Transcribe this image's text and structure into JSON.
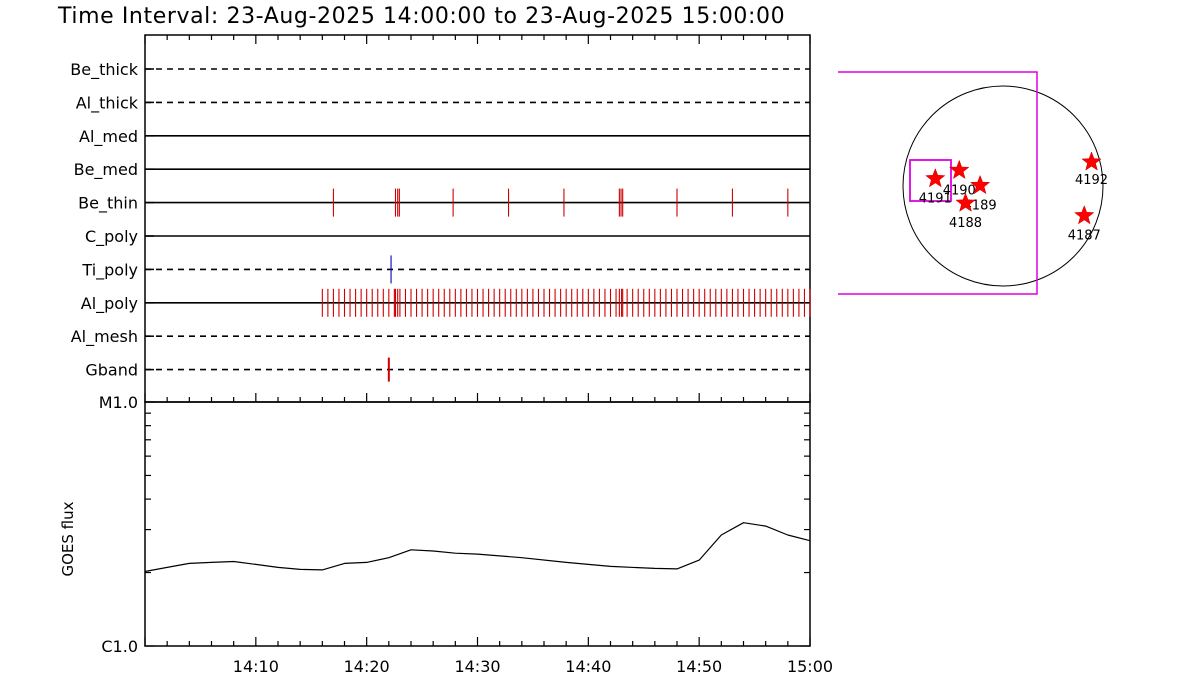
{
  "title": "Time Interval: 23-Aug-2025 14:00:00 to 23-Aug-2025 15:00:00",
  "chart_data": [
    {
      "type": "timeline",
      "x_unit": "minutes after 14:00",
      "xlim": [
        0,
        60
      ],
      "channels": [
        {
          "name": "Be_thick",
          "line": "dashed",
          "events": []
        },
        {
          "name": "Al_thick",
          "line": "dashed",
          "events": []
        },
        {
          "name": "Al_med",
          "line": "solid",
          "events": []
        },
        {
          "name": "Be_med",
          "line": "solid",
          "events": []
        },
        {
          "name": "Be_thin",
          "line": "solid",
          "color": "#d00000",
          "events": [
            17.0,
            22.6,
            22.8,
            22.95,
            27.8,
            32.8,
            37.8,
            42.8,
            42.95,
            43.1,
            48.0,
            53.0,
            58.0
          ]
        },
        {
          "name": "C_poly",
          "line": "solid",
          "events": []
        },
        {
          "name": "Ti_poly",
          "line": "dashed",
          "color": "#0000c0",
          "events": [
            22.2
          ]
        },
        {
          "name": "Al_poly",
          "line": "solid",
          "color": "#d00000",
          "events": [
            16.0,
            16.5,
            17.0,
            17.5,
            18.0,
            18.5,
            19.0,
            19.5,
            20.0,
            20.5,
            21.0,
            21.5,
            22.0,
            22.5,
            22.6,
            22.8,
            23.0,
            23.5,
            24.0,
            24.5,
            25.0,
            25.5,
            26.0,
            26.5,
            27.0,
            27.5,
            28.0,
            28.5,
            29.0,
            29.5,
            30.0,
            30.5,
            31.0,
            31.5,
            32.0,
            32.5,
            33.0,
            33.5,
            34.0,
            34.5,
            35.0,
            35.5,
            36.0,
            36.5,
            37.0,
            37.5,
            38.0,
            38.5,
            39.0,
            39.5,
            40.0,
            40.5,
            41.0,
            41.5,
            42.0,
            42.5,
            42.8,
            43.0,
            43.1,
            43.5,
            44.0,
            44.5,
            45.0,
            45.5,
            46.0,
            46.5,
            47.0,
            47.5,
            48.0,
            48.5,
            49.0,
            49.5,
            50.0,
            50.5,
            51.0,
            51.5,
            52.0,
            52.5,
            53.0,
            53.5,
            54.0,
            54.5,
            55.0,
            55.5,
            56.0,
            56.5,
            57.0,
            57.5,
            58.0,
            58.5,
            59.0,
            59.5,
            60.0
          ]
        },
        {
          "name": "Al_mesh",
          "line": "dashed",
          "events": []
        },
        {
          "name": "Gband",
          "line": "dashed",
          "color": "#d00000",
          "events": [
            22.0
          ]
        }
      ]
    },
    {
      "type": "line",
      "ylabel": "GOES flux",
      "ylim_labels": [
        "C1.0",
        "M1.0"
      ],
      "y_scale": "log",
      "xlim": [
        0,
        60
      ],
      "x_ticks": [
        {
          "t": 10,
          "label": "14:10"
        },
        {
          "t": 20,
          "label": "14:20"
        },
        {
          "t": 30,
          "label": "14:30"
        },
        {
          "t": 40,
          "label": "14:40"
        },
        {
          "t": 50,
          "label": "14:50"
        },
        {
          "t": 60,
          "label": "15:00"
        }
      ],
      "series": [
        {
          "values": [
            [
              0,
              2.02
            ],
            [
              2,
              2.1
            ],
            [
              4,
              2.18
            ],
            [
              6,
              2.2
            ],
            [
              8,
              2.22
            ],
            [
              10,
              2.16
            ],
            [
              12,
              2.1
            ],
            [
              14,
              2.06
            ],
            [
              16,
              2.05
            ],
            [
              18,
              2.18
            ],
            [
              20,
              2.2
            ],
            [
              22,
              2.3
            ],
            [
              24,
              2.48
            ],
            [
              26,
              2.45
            ],
            [
              28,
              2.4
            ],
            [
              30,
              2.38
            ],
            [
              34,
              2.3
            ],
            [
              38,
              2.2
            ],
            [
              42,
              2.12
            ],
            [
              46,
              2.08
            ],
            [
              48,
              2.07
            ],
            [
              50,
              2.25
            ],
            [
              52,
              2.85
            ],
            [
              54,
              3.2
            ],
            [
              56,
              3.1
            ],
            [
              58,
              2.85
            ],
            [
              60,
              2.7
            ]
          ]
        }
      ]
    },
    {
      "type": "scatter",
      "subtype": "solar-disk-map",
      "points": [
        {
          "label": "4192",
          "x": 850,
          "y": 230
        },
        {
          "label": "4190",
          "x": -420,
          "y": 150
        },
        {
          "label": "4191",
          "x": -650,
          "y": 70
        },
        {
          "label": "4189",
          "x": -220,
          "y": 5
        },
        {
          "label": "4188",
          "x": -360,
          "y": -165
        },
        {
          "label": "4187",
          "x": 780,
          "y": -285
        }
      ]
    }
  ]
}
